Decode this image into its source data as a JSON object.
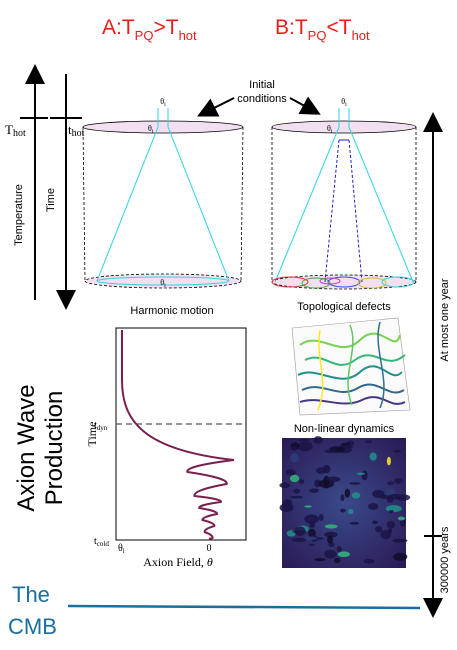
{
  "headers": {
    "a_prefix": "A:T",
    "a_sub": "PQ",
    "a_rel": ">T",
    "a_sub2": "hot",
    "b_prefix": "B:T",
    "b_sub": "PQ",
    "b_rel": "<T",
    "b_sub2": "hot",
    "color": "#ee1c1c"
  },
  "initial_conditions": {
    "line1": "Initial",
    "line2": "conditions"
  },
  "axes": {
    "temperature": "Temperature",
    "time": "Time",
    "T_hot_main": "T",
    "T_hot_sub": "hot",
    "t_hot_main": "t",
    "t_hot_sub": "hot"
  },
  "cone_labels": {
    "theta_i": "θ",
    "theta_i_sub": "i"
  },
  "panels": {
    "harmonic": "Harmonic motion",
    "topological": "Topological defects",
    "nonlinear": "Non-linear dynamics"
  },
  "left_title": {
    "line1": "Axion Wave",
    "line2": "Production"
  },
  "plot": {
    "ylabel": "Time",
    "xlabel_text": "Axion Field, ",
    "xlabel_sym": "θ",
    "t_dyn_main": "t",
    "t_dyn_sub": "dyn",
    "t_cold_main": "t",
    "t_cold_sub": "cold",
    "tick_theta": "θ",
    "tick_theta_sub": "i",
    "tick_zero": "0",
    "curve_color": "#7a1f4f"
  },
  "right_axis": {
    "upper": "At most one year",
    "lower": "300000 years"
  },
  "cmb": {
    "line1": "The",
    "line2": "CMB",
    "color": "#1b6f9c"
  }
}
